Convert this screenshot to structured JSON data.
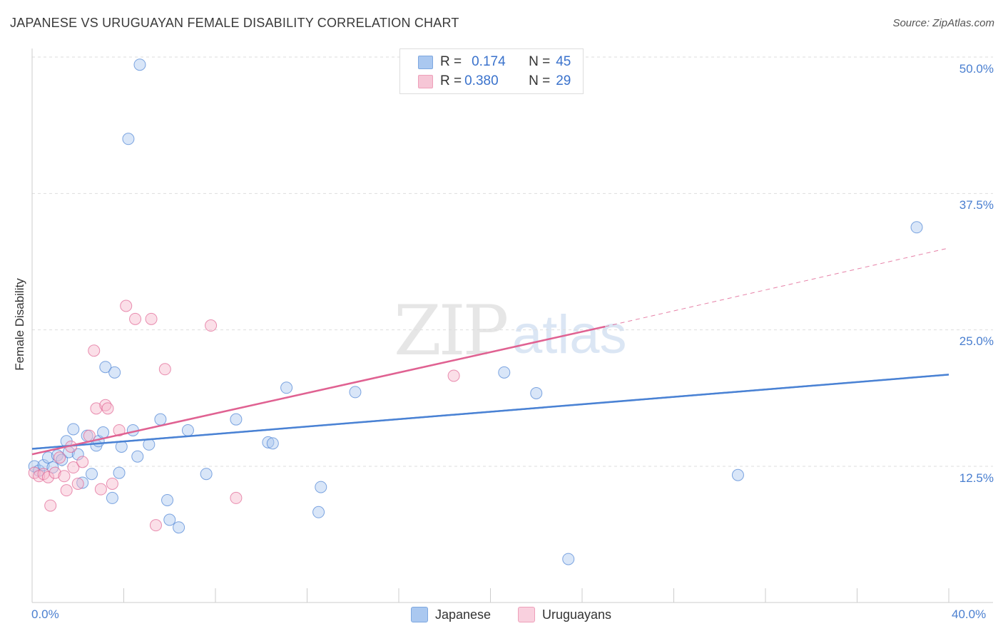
{
  "header": {
    "title": "JAPANESE VS URUGUAYAN FEMALE DISABILITY CORRELATION CHART",
    "source": "Source: ZipAtlas.com"
  },
  "watermark": {
    "zip": "ZIP",
    "atlas": "atlas"
  },
  "legend_top": {
    "rows": [
      {
        "r_label": "R = ",
        "r_value": "0.174",
        "n_label": "N = ",
        "n_value": "45",
        "color": "#aac8f0"
      },
      {
        "r_label": "R = ",
        "r_value": "0.380",
        "n_label": "N = ",
        "n_value": "29",
        "color": "#f6b8cc"
      }
    ]
  },
  "legend_bottom": {
    "items": [
      {
        "label": "Japanese",
        "color": "#aac8f0"
      },
      {
        "label": "Uruguayans",
        "color": "#f6b8cc"
      }
    ]
  },
  "chart_data": {
    "type": "scatter",
    "title": "JAPANESE VS URUGUAYAN FEMALE DISABILITY CORRELATION CHART",
    "xlabel": "",
    "ylabel": "Female Disability",
    "xlim": [
      0,
      40
    ],
    "ylim": [
      0,
      52
    ],
    "x_tick_labels": [
      "0.0%",
      "40.0%"
    ],
    "y_ticks": [
      12.5,
      25.0,
      37.5,
      50.0
    ],
    "y_tick_labels": [
      "12.5%",
      "25.0%",
      "37.5%",
      "50.0%"
    ],
    "grid": true,
    "series": [
      {
        "name": "Japanese",
        "color": "#4a82d4",
        "fill": "#aac8f0",
        "points": [
          [
            0.1,
            12.5
          ],
          [
            0.3,
            12.1
          ],
          [
            0.5,
            12.6
          ],
          [
            0.7,
            13.3
          ],
          [
            0.9,
            12.4
          ],
          [
            1.1,
            13.5
          ],
          [
            1.3,
            13.1
          ],
          [
            1.5,
            14.8
          ],
          [
            1.6,
            13.8
          ],
          [
            1.8,
            15.9
          ],
          [
            2.0,
            13.6
          ],
          [
            2.2,
            11.0
          ],
          [
            2.4,
            15.3
          ],
          [
            2.6,
            11.8
          ],
          [
            2.8,
            14.4
          ],
          [
            2.9,
            14.8
          ],
          [
            3.1,
            15.6
          ],
          [
            3.2,
            21.6
          ],
          [
            3.5,
            9.6
          ],
          [
            3.6,
            21.1
          ],
          [
            3.8,
            11.9
          ],
          [
            3.9,
            14.3
          ],
          [
            4.2,
            42.5
          ],
          [
            4.4,
            15.8
          ],
          [
            4.6,
            13.4
          ],
          [
            4.7,
            49.3
          ],
          [
            5.1,
            14.5
          ],
          [
            5.6,
            16.8
          ],
          [
            5.9,
            9.4
          ],
          [
            6.0,
            7.6
          ],
          [
            6.4,
            6.9
          ],
          [
            6.8,
            15.8
          ],
          [
            7.6,
            11.8
          ],
          [
            8.9,
            16.8
          ],
          [
            10.3,
            14.7
          ],
          [
            10.5,
            14.6
          ],
          [
            11.1,
            19.7
          ],
          [
            12.5,
            8.3
          ],
          [
            12.6,
            10.6
          ],
          [
            14.1,
            19.3
          ],
          [
            20.6,
            21.1
          ],
          [
            22.0,
            19.2
          ],
          [
            23.4,
            4.0
          ],
          [
            30.8,
            11.7
          ],
          [
            38.6,
            34.4
          ]
        ],
        "trend": [
          [
            0,
            14.1
          ],
          [
            40,
            20.9
          ]
        ]
      },
      {
        "name": "Uruguayans",
        "color": "#e06292",
        "fill": "#f6b8cc",
        "points": [
          [
            0.1,
            11.9
          ],
          [
            0.3,
            11.6
          ],
          [
            0.5,
            11.8
          ],
          [
            0.7,
            11.5
          ],
          [
            0.8,
            8.9
          ],
          [
            1.0,
            11.9
          ],
          [
            1.2,
            13.3
          ],
          [
            1.4,
            11.6
          ],
          [
            1.5,
            10.3
          ],
          [
            1.7,
            14.3
          ],
          [
            1.8,
            12.4
          ],
          [
            2.0,
            10.9
          ],
          [
            2.2,
            12.9
          ],
          [
            2.5,
            15.3
          ],
          [
            2.7,
            23.1
          ],
          [
            2.8,
            17.8
          ],
          [
            3.0,
            10.4
          ],
          [
            3.2,
            18.1
          ],
          [
            3.3,
            17.8
          ],
          [
            3.5,
            10.9
          ],
          [
            3.8,
            15.8
          ],
          [
            4.1,
            27.2
          ],
          [
            4.5,
            26.0
          ],
          [
            5.2,
            26.0
          ],
          [
            5.4,
            7.1
          ],
          [
            5.8,
            21.4
          ],
          [
            7.8,
            25.4
          ],
          [
            8.9,
            9.6
          ],
          [
            18.4,
            20.8
          ]
        ],
        "trend": [
          [
            0,
            13.6
          ],
          [
            25,
            25.3
          ]
        ],
        "trend_dashed": [
          [
            25,
            25.3
          ],
          [
            40,
            32.5
          ]
        ]
      }
    ]
  }
}
